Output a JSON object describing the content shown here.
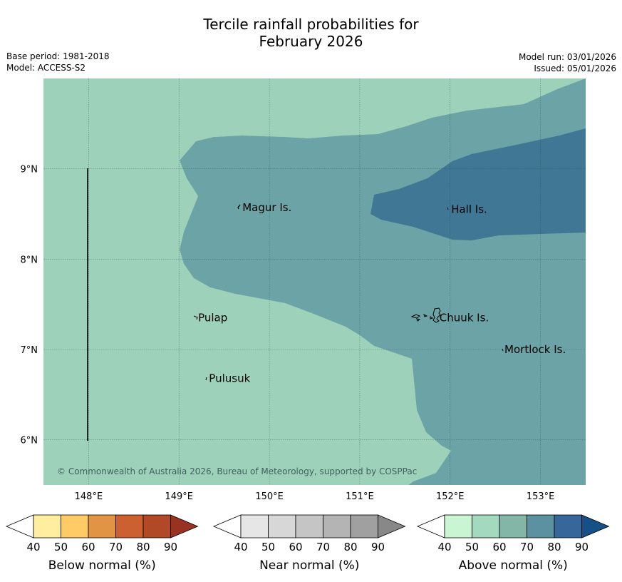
{
  "header": {
    "title_line1": "Tercile rainfall probabilities for",
    "title_line2": "February 2026",
    "base_period": "Base period: 1981-2018",
    "model": "Model: ACCESS-S2",
    "model_run": "Model run: 03/01/2026",
    "issued": "Issued: 05/01/2026"
  },
  "map": {
    "lon_ticks": [
      "148°E",
      "149°E",
      "150°E",
      "151°E",
      "152°E",
      "153°E"
    ],
    "lat_ticks": [
      "9°N",
      "8°N",
      "7°N",
      "6°N"
    ],
    "lon_range": [
      147.5,
      153.5
    ],
    "lat_range": [
      5.5,
      10.0
    ],
    "places": [
      {
        "name": "Magur Is.",
        "lon": 149.67,
        "lat": 8.57
      },
      {
        "name": "Hall Is.",
        "lon": 151.98,
        "lat": 8.55
      },
      {
        "name": "Pulap",
        "lon": 149.18,
        "lat": 7.35
      },
      {
        "name": "Chuuk Is.",
        "lon": 151.85,
        "lat": 7.35
      },
      {
        "name": "Mortlock Is.",
        "lon": 152.57,
        "lat": 7.0
      },
      {
        "name": "Pulusuk",
        "lon": 149.3,
        "lat": 6.68
      }
    ],
    "copyright": "© Commonwealth of Australia 2026, Bureau of Meteorology, supported by COSPPac",
    "fill_colors": {
      "above_50_60": "#9dd1b9",
      "above_70_80": "#6ba3a6",
      "above_80_90": "#3f7794"
    }
  },
  "legends": [
    {
      "label": "Below normal (%)",
      "ticks": [
        "40",
        "50",
        "60",
        "70",
        "80",
        "90"
      ],
      "colors": [
        "#ffeda0",
        "#fecb66",
        "#e19544",
        "#cc6030",
        "#b14826"
      ],
      "under": "#ffffff",
      "over": "#993220"
    },
    {
      "label": "Near normal (%)",
      "ticks": [
        "40",
        "50",
        "60",
        "70",
        "80",
        "90"
      ],
      "colors": [
        "#e6e6e6",
        "#d7d7d7",
        "#c5c5c5",
        "#b4b4b4",
        "#a0a0a0"
      ],
      "under": "#ffffff",
      "over": "#888888"
    },
    {
      "label": "Above normal (%)",
      "ticks": [
        "40",
        "50",
        "60",
        "70",
        "80",
        "90"
      ],
      "colors": [
        "#c9f5d2",
        "#a3d9bf",
        "#84b6a8",
        "#5b91a1",
        "#36669a"
      ],
      "under": "#ffffff",
      "over": "#174f87"
    }
  ]
}
